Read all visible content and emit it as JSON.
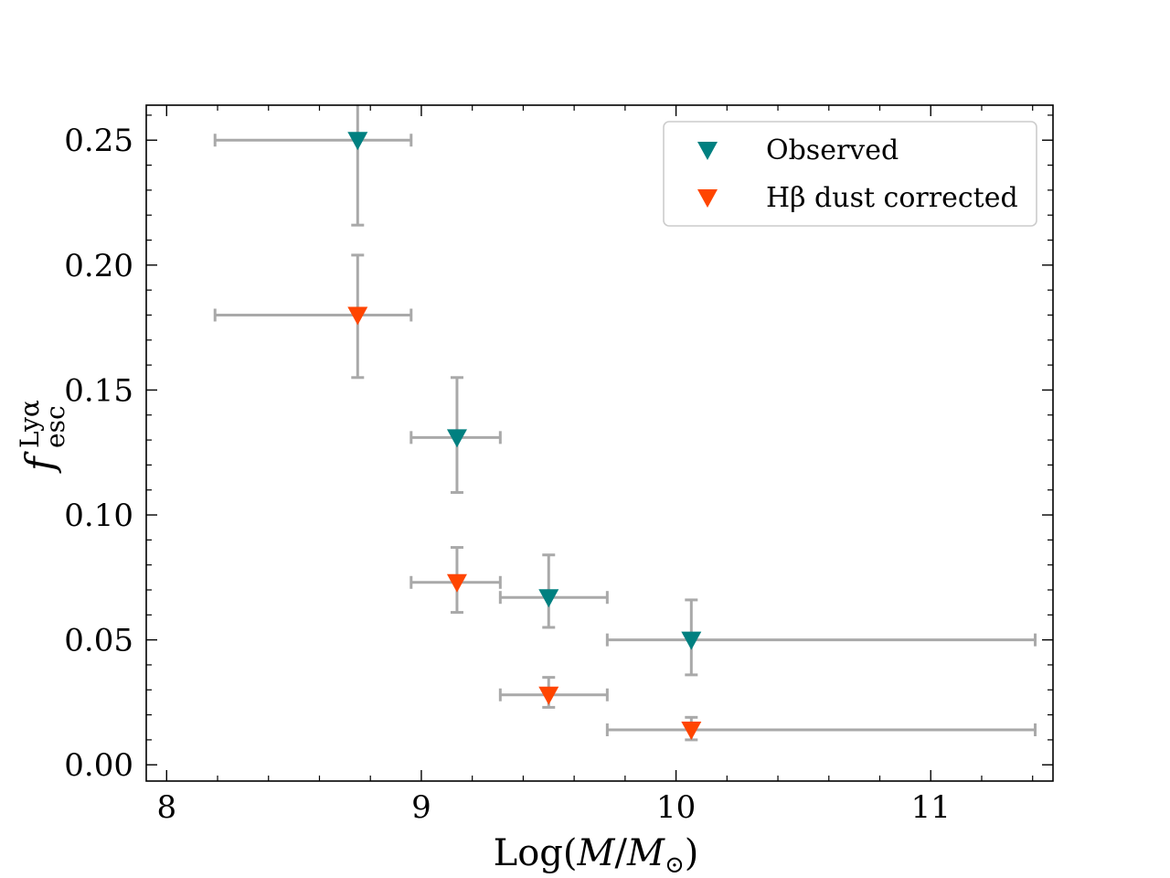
{
  "chart_data": {
    "type": "scatter",
    "title": "",
    "xlabel": {
      "prefix": "Log(",
      "M1": "M",
      "slash": "/",
      "M2": "M",
      "sub": "⊙",
      "suffix": ")"
    },
    "ylabel": {
      "main": "f",
      "sup": "Lyα",
      "sub": "esc"
    },
    "xlim": [
      7.92,
      11.48
    ],
    "ylim": [
      -0.0065,
      0.264
    ],
    "xticks": [
      8,
      9,
      10,
      11
    ],
    "xtick_labels": [
      "8",
      "9",
      "10",
      "11"
    ],
    "yticks": [
      0.0,
      0.05,
      0.1,
      0.15,
      0.2,
      0.25
    ],
    "ytick_labels": [
      "0.00",
      "0.05",
      "0.10",
      "0.15",
      "0.20",
      "0.25"
    ],
    "legend_position": "top-right",
    "errorbar_color": "#a9a9a9",
    "series": [
      {
        "name": "Observed",
        "color": "#008080",
        "marker": "triangle-down",
        "points": [
          {
            "x": 8.75,
            "y": 0.25,
            "xlo": 8.19,
            "xhi": 8.96,
            "ylo": 0.216,
            "yhi": 0.269
          },
          {
            "x": 9.14,
            "y": 0.131,
            "xlo": 8.96,
            "xhi": 9.31,
            "ylo": 0.109,
            "yhi": 0.155
          },
          {
            "x": 9.5,
            "y": 0.067,
            "xlo": 9.31,
            "xhi": 9.73,
            "ylo": 0.055,
            "yhi": 0.084
          },
          {
            "x": 10.06,
            "y": 0.05,
            "xlo": 9.73,
            "xhi": 11.41,
            "ylo": 0.036,
            "yhi": 0.066
          }
        ]
      },
      {
        "name": "Hβ dust corrected",
        "color": "#ff4500",
        "marker": "triangle-down",
        "points": [
          {
            "x": 8.75,
            "y": 0.18,
            "xlo": 8.19,
            "xhi": 8.96,
            "ylo": 0.155,
            "yhi": 0.204
          },
          {
            "x": 9.14,
            "y": 0.073,
            "xlo": 8.96,
            "xhi": 9.31,
            "ylo": 0.061,
            "yhi": 0.087
          },
          {
            "x": 9.5,
            "y": 0.028,
            "xlo": 9.31,
            "xhi": 9.73,
            "ylo": 0.023,
            "yhi": 0.035
          },
          {
            "x": 10.06,
            "y": 0.014,
            "xlo": 9.73,
            "xhi": 11.41,
            "ylo": 0.01,
            "yhi": 0.019
          }
        ]
      }
    ]
  }
}
